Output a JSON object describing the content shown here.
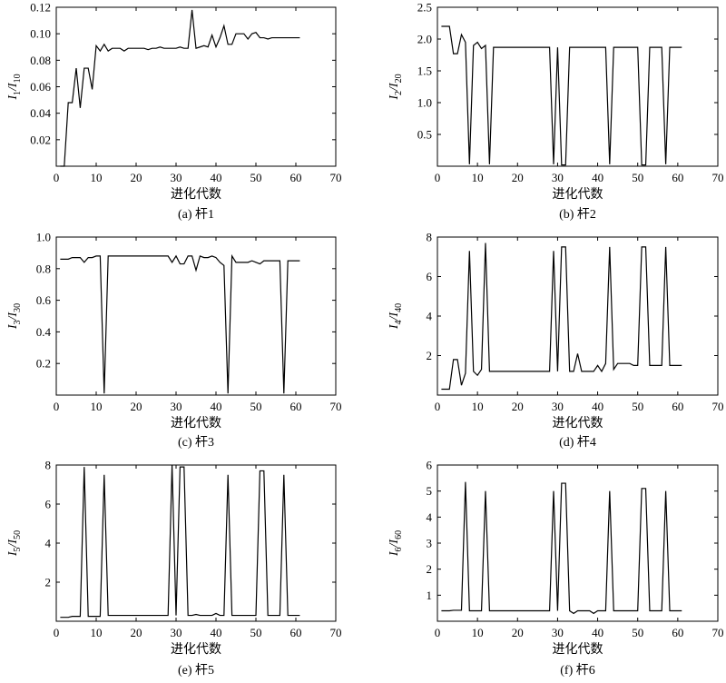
{
  "chart_data": [
    {
      "type": "line",
      "caption": "(a) 杆1",
      "xlabel": "进化代数",
      "ylabel_base": "I",
      "ylabel_sub1": "1",
      "ylabel_mid": "/I",
      "ylabel_sub2": "10",
      "xlim": [
        0,
        70
      ],
      "ylim": [
        0,
        0.12
      ],
      "xticks": [
        "0",
        "10",
        "20",
        "30",
        "40",
        "50",
        "60",
        "70"
      ],
      "yticks": [
        {
          "v": 0.02,
          "label": "0.02"
        },
        {
          "v": 0.04,
          "label": "0.04"
        },
        {
          "v": 0.06,
          "label": "0.06"
        },
        {
          "v": 0.08,
          "label": "0.08"
        },
        {
          "v": 0.1,
          "label": "0.10"
        },
        {
          "v": 0.12,
          "label": "0.12"
        }
      ],
      "x": [
        1,
        2,
        3,
        4,
        5,
        6,
        7,
        8,
        9,
        10,
        11,
        12,
        13,
        14,
        15,
        16,
        17,
        18,
        19,
        20,
        21,
        22,
        23,
        24,
        25,
        26,
        27,
        28,
        29,
        30,
        31,
        32,
        33,
        34,
        35,
        36,
        37,
        38,
        39,
        40,
        41,
        42,
        43,
        44,
        45,
        46,
        47,
        48,
        49,
        50,
        51,
        52,
        53,
        54,
        55,
        56,
        57,
        58,
        59,
        60,
        61
      ],
      "y": [
        0,
        0,
        0.048,
        0.048,
        0.074,
        0.044,
        0.074,
        0.074,
        0.058,
        0.091,
        0.087,
        0.092,
        0.087,
        0.089,
        0.089,
        0.089,
        0.087,
        0.089,
        0.089,
        0.089,
        0.089,
        0.089,
        0.088,
        0.089,
        0.089,
        0.09,
        0.089,
        0.089,
        0.089,
        0.089,
        0.09,
        0.089,
        0.089,
        0.118,
        0.089,
        0.09,
        0.091,
        0.09,
        0.099,
        0.09,
        0.097,
        0.106,
        0.092,
        0.092,
        0.1,
        0.1,
        0.1,
        0.096,
        0.1,
        0.101,
        0.097,
        0.097,
        0.096,
        0.097,
        0.097,
        0.097,
        0.097,
        0.097,
        0.097,
        0.097,
        0.097
      ]
    },
    {
      "type": "line",
      "caption": "(b) 杆2",
      "xlabel": "进化代数",
      "ylabel_base": "I",
      "ylabel_sub1": "2",
      "ylabel_mid": "/I",
      "ylabel_sub2": "20",
      "xlim": [
        0,
        70
      ],
      "ylim": [
        0,
        2.5
      ],
      "xticks": [
        "0",
        "10",
        "20",
        "30",
        "40",
        "50",
        "60",
        "70"
      ],
      "yticks": [
        {
          "v": 0.5,
          "label": "0.5"
        },
        {
          "v": 1.0,
          "label": "1.0"
        },
        {
          "v": 1.5,
          "label": "1.5"
        },
        {
          "v": 2.0,
          "label": "2.0"
        },
        {
          "v": 2.5,
          "label": "2.5"
        }
      ],
      "x": [
        1,
        2,
        3,
        4,
        5,
        6,
        7,
        8,
        9,
        10,
        11,
        12,
        13,
        14,
        15,
        16,
        17,
        18,
        19,
        20,
        21,
        22,
        23,
        24,
        25,
        26,
        27,
        28,
        29,
        30,
        31,
        32,
        33,
        34,
        35,
        36,
        37,
        38,
        39,
        40,
        41,
        42,
        43,
        44,
        45,
        46,
        47,
        48,
        49,
        50,
        51,
        52,
        53,
        54,
        55,
        56,
        57,
        58,
        59,
        60,
        61
      ],
      "y": [
        2.2,
        2.2,
        2.2,
        1.77,
        1.77,
        2.07,
        1.95,
        0.03,
        1.9,
        1.95,
        1.85,
        1.9,
        0.03,
        1.87,
        1.87,
        1.87,
        1.87,
        1.87,
        1.87,
        1.87,
        1.87,
        1.87,
        1.87,
        1.87,
        1.87,
        1.87,
        1.87,
        1.87,
        0.03,
        1.87,
        0.02,
        0.02,
        1.87,
        1.87,
        1.87,
        1.87,
        1.87,
        1.87,
        1.87,
        1.87,
        1.87,
        1.87,
        0.03,
        1.87,
        1.87,
        1.87,
        1.87,
        1.87,
        1.87,
        1.87,
        0.02,
        0.02,
        1.87,
        1.87,
        1.87,
        1.87,
        0.03,
        1.87,
        1.87,
        1.87,
        1.87
      ]
    },
    {
      "type": "line",
      "caption": "(c) 杆3",
      "xlabel": "进化代数",
      "ylabel_base": "I",
      "ylabel_sub1": "3",
      "ylabel_mid": "/I",
      "ylabel_sub2": "30",
      "xlim": [
        0,
        70
      ],
      "ylim": [
        0,
        1.0
      ],
      "xticks": [
        "0",
        "10",
        "20",
        "30",
        "40",
        "50",
        "60",
        "70"
      ],
      "yticks": [
        {
          "v": 0.2,
          "label": "0.2"
        },
        {
          "v": 0.4,
          "label": "0.4"
        },
        {
          "v": 0.6,
          "label": "0.6"
        },
        {
          "v": 0.8,
          "label": "0.8"
        },
        {
          "v": 1.0,
          "label": "1.0"
        }
      ],
      "x": [
        1,
        2,
        3,
        4,
        5,
        6,
        7,
        8,
        9,
        10,
        11,
        12,
        13,
        14,
        15,
        16,
        17,
        18,
        19,
        20,
        21,
        22,
        23,
        24,
        25,
        26,
        27,
        28,
        29,
        30,
        31,
        32,
        33,
        34,
        35,
        36,
        37,
        38,
        39,
        40,
        41,
        42,
        43,
        44,
        45,
        46,
        47,
        48,
        49,
        50,
        51,
        52,
        53,
        54,
        55,
        56,
        57,
        58,
        59,
        60,
        61
      ],
      "y": [
        0.86,
        0.86,
        0.86,
        0.87,
        0.87,
        0.87,
        0.84,
        0.87,
        0.87,
        0.88,
        0.88,
        0.01,
        0.88,
        0.88,
        0.88,
        0.88,
        0.88,
        0.88,
        0.88,
        0.88,
        0.88,
        0.88,
        0.88,
        0.88,
        0.88,
        0.88,
        0.88,
        0.88,
        0.84,
        0.88,
        0.83,
        0.83,
        0.88,
        0.88,
        0.79,
        0.88,
        0.87,
        0.87,
        0.88,
        0.87,
        0.84,
        0.82,
        0.01,
        0.88,
        0.84,
        0.84,
        0.84,
        0.84,
        0.85,
        0.84,
        0.83,
        0.85,
        0.85,
        0.85,
        0.85,
        0.85,
        0.01,
        0.85,
        0.85,
        0.85,
        0.85
      ]
    },
    {
      "type": "line",
      "caption": "(d) 杆4",
      "xlabel": "进化代数",
      "ylabel_base": "I",
      "ylabel_sub1": "4",
      "ylabel_mid": "/I",
      "ylabel_sub2": "40",
      "xlim": [
        0,
        70
      ],
      "ylim": [
        0,
        8
      ],
      "xticks": [
        "0",
        "10",
        "20",
        "30",
        "40",
        "50",
        "60",
        "70"
      ],
      "yticks": [
        {
          "v": 2,
          "label": "2"
        },
        {
          "v": 4,
          "label": "4"
        },
        {
          "v": 6,
          "label": "6"
        },
        {
          "v": 8,
          "label": "8"
        }
      ],
      "x": [
        1,
        2,
        3,
        4,
        5,
        6,
        7,
        8,
        9,
        10,
        11,
        12,
        13,
        14,
        15,
        16,
        17,
        18,
        19,
        20,
        21,
        22,
        23,
        24,
        25,
        26,
        27,
        28,
        29,
        30,
        31,
        32,
        33,
        34,
        35,
        36,
        37,
        38,
        39,
        40,
        41,
        42,
        43,
        44,
        45,
        46,
        47,
        48,
        49,
        50,
        51,
        52,
        53,
        54,
        55,
        56,
        57,
        58,
        59,
        60,
        61
      ],
      "y": [
        0.3,
        0.3,
        0.3,
        1.8,
        1.8,
        0.5,
        1.1,
        7.3,
        1.2,
        1.0,
        1.3,
        7.7,
        1.2,
        1.2,
        1.2,
        1.2,
        1.2,
        1.2,
        1.2,
        1.2,
        1.2,
        1.2,
        1.2,
        1.2,
        1.2,
        1.2,
        1.2,
        1.2,
        7.3,
        1.2,
        7.5,
        7.5,
        1.2,
        1.2,
        2.1,
        1.2,
        1.2,
        1.2,
        1.2,
        1.5,
        1.2,
        1.6,
        7.5,
        1.3,
        1.6,
        1.6,
        1.6,
        1.6,
        1.5,
        1.5,
        7.5,
        7.5,
        1.5,
        1.5,
        1.5,
        1.5,
        7.5,
        1.5,
        1.5,
        1.5,
        1.5
      ]
    },
    {
      "type": "line",
      "caption": "(e) 杆5",
      "xlabel": "进化代数",
      "ylabel_base": "I",
      "ylabel_sub1": "5",
      "ylabel_mid": "/I",
      "ylabel_sub2": "50",
      "xlim": [
        0,
        70
      ],
      "ylim": [
        0,
        8
      ],
      "xticks": [
        "0",
        "10",
        "20",
        "30",
        "40",
        "50",
        "60",
        "70"
      ],
      "yticks": [
        {
          "v": 2,
          "label": "2"
        },
        {
          "v": 4,
          "label": "4"
        },
        {
          "v": 6,
          "label": "6"
        },
        {
          "v": 8,
          "label": "8"
        }
      ],
      "x": [
        1,
        2,
        3,
        4,
        5,
        6,
        7,
        8,
        9,
        10,
        11,
        12,
        13,
        14,
        15,
        16,
        17,
        18,
        19,
        20,
        21,
        22,
        23,
        24,
        25,
        26,
        27,
        28,
        29,
        30,
        31,
        32,
        33,
        34,
        35,
        36,
        37,
        38,
        39,
        40,
        41,
        42,
        43,
        44,
        45,
        46,
        47,
        48,
        49,
        50,
        51,
        52,
        53,
        54,
        55,
        56,
        57,
        58,
        59,
        60,
        61
      ],
      "y": [
        0.2,
        0.2,
        0.2,
        0.25,
        0.25,
        0.25,
        7.9,
        0.25,
        0.25,
        0.25,
        0.25,
        7.5,
        0.3,
        0.3,
        0.3,
        0.3,
        0.3,
        0.3,
        0.3,
        0.3,
        0.3,
        0.3,
        0.3,
        0.3,
        0.3,
        0.3,
        0.3,
        0.3,
        8.0,
        0.3,
        7.9,
        7.9,
        0.3,
        0.3,
        0.35,
        0.3,
        0.3,
        0.3,
        0.3,
        0.4,
        0.3,
        0.3,
        7.5,
        0.3,
        0.3,
        0.3,
        0.3,
        0.3,
        0.3,
        0.3,
        7.7,
        7.7,
        0.3,
        0.3,
        0.3,
        0.3,
        7.5,
        0.3,
        0.3,
        0.3,
        0.3
      ]
    },
    {
      "type": "line",
      "caption": "(f) 杆6",
      "xlabel": "进化代数",
      "ylabel_base": "I",
      "ylabel_sub1": "6",
      "ylabel_mid": "/I",
      "ylabel_sub2": "60",
      "xlim": [
        0,
        70
      ],
      "ylim": [
        0,
        6
      ],
      "xticks": [
        "0",
        "10",
        "20",
        "30",
        "40",
        "50",
        "60",
        "70"
      ],
      "yticks": [
        {
          "v": 1,
          "label": "1"
        },
        {
          "v": 2,
          "label": "2"
        },
        {
          "v": 3,
          "label": "3"
        },
        {
          "v": 4,
          "label": "4"
        },
        {
          "v": 5,
          "label": "5"
        },
        {
          "v": 6,
          "label": "6"
        }
      ],
      "x": [
        1,
        2,
        3,
        4,
        5,
        6,
        7,
        8,
        9,
        10,
        11,
        12,
        13,
        14,
        15,
        16,
        17,
        18,
        19,
        20,
        21,
        22,
        23,
        24,
        25,
        26,
        27,
        28,
        29,
        30,
        31,
        32,
        33,
        34,
        35,
        36,
        37,
        38,
        39,
        40,
        41,
        42,
        43,
        44,
        45,
        46,
        47,
        48,
        49,
        50,
        51,
        52,
        53,
        54,
        55,
        56,
        57,
        58,
        59,
        60,
        61
      ],
      "y": [
        0.4,
        0.4,
        0.4,
        0.42,
        0.42,
        0.42,
        5.35,
        0.4,
        0.4,
        0.4,
        0.4,
        5.0,
        0.4,
        0.4,
        0.4,
        0.4,
        0.4,
        0.4,
        0.4,
        0.4,
        0.4,
        0.4,
        0.4,
        0.4,
        0.4,
        0.4,
        0.4,
        0.4,
        5.0,
        0.4,
        5.3,
        5.3,
        0.4,
        0.3,
        0.4,
        0.4,
        0.4,
        0.4,
        0.3,
        0.4,
        0.4,
        0.4,
        5.0,
        0.4,
        0.4,
        0.4,
        0.4,
        0.4,
        0.4,
        0.4,
        5.1,
        5.1,
        0.4,
        0.4,
        0.4,
        0.4,
        5.0,
        0.4,
        0.4,
        0.4,
        0.4
      ]
    }
  ]
}
